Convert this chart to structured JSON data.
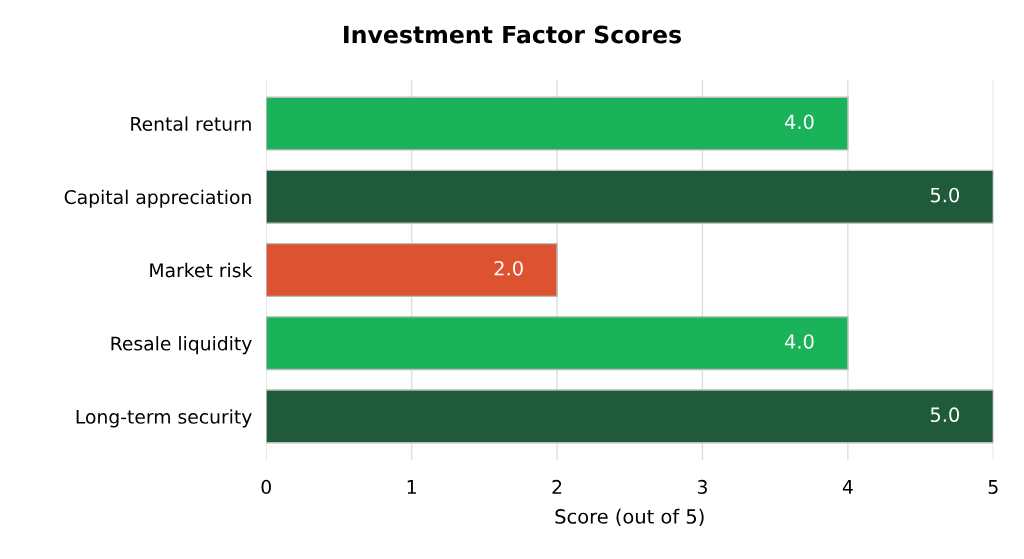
{
  "chart_data": {
    "type": "bar",
    "orientation": "horizontal",
    "title": "Investment Factor Scores",
    "xlabel": "Score (out of 5)",
    "categories": [
      "Rental return",
      "Capital appreciation",
      "Market risk",
      "Resale liquidity",
      "Long-term security"
    ],
    "values": [
      4.0,
      5.0,
      2.0,
      4.0,
      5.0
    ],
    "colors": [
      "#1bb35a",
      "#1f5a3a",
      "#dd5230",
      "#1bb35a",
      "#1f5a3a"
    ],
    "value_labels": [
      "4.0",
      "5.0",
      "2.0",
      "4.0",
      "5.0"
    ],
    "xlim": [
      0,
      5
    ],
    "xticks": [
      0,
      1,
      2,
      3,
      4,
      5
    ],
    "grid": "x"
  }
}
